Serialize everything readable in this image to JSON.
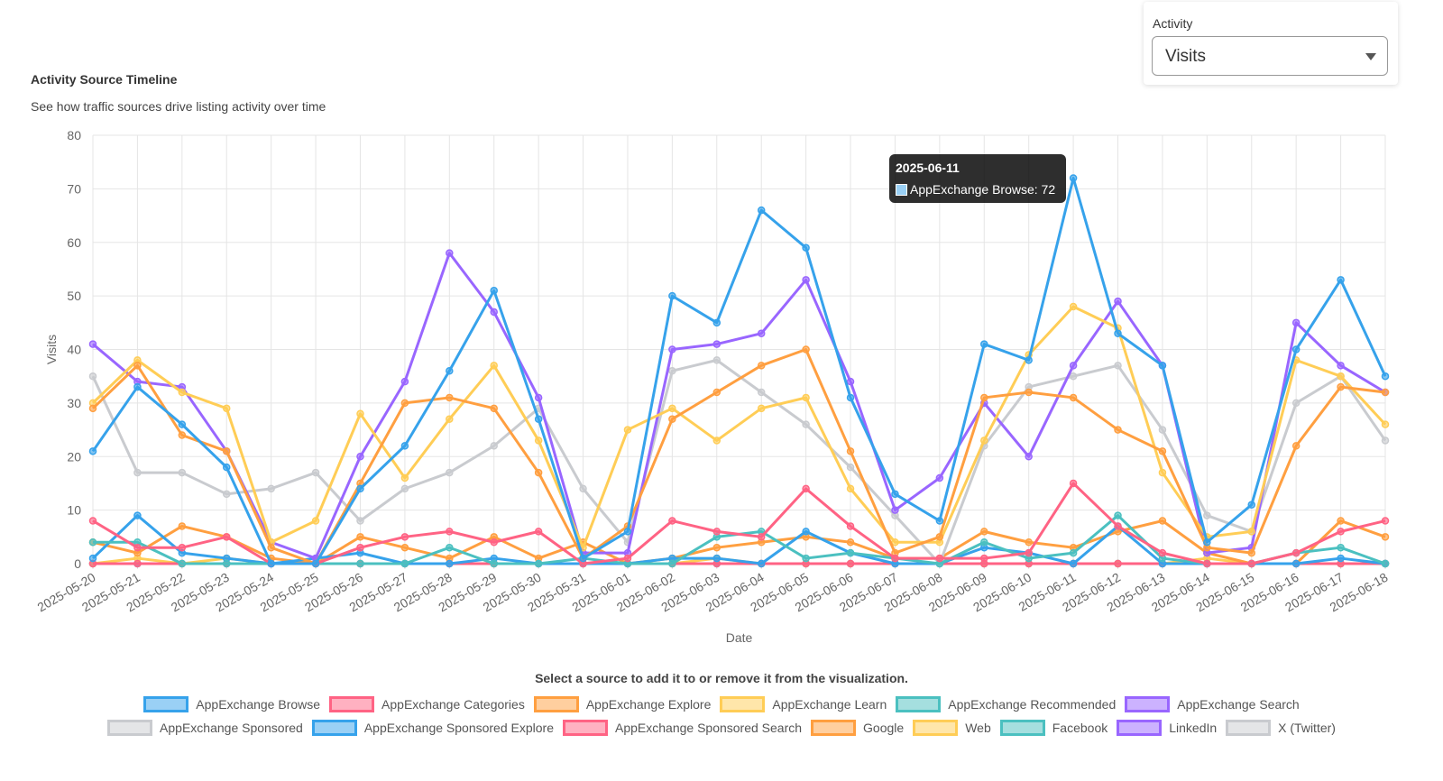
{
  "header": {
    "title": "Activity Source Timeline",
    "subtitle": "See how traffic sources drive listing activity over time"
  },
  "activity_filter": {
    "label": "Activity",
    "value": "Visits"
  },
  "legend_hint": "Select a source to add it to or remove it from the visualization.",
  "tooltip": {
    "date": "2025-06-11",
    "label": "AppExchange Browse: 72"
  },
  "chart_data": {
    "type": "line",
    "title": "Activity Source Timeline",
    "xlabel": "Date",
    "ylabel": "Visits",
    "ylim": [
      0,
      80
    ],
    "yticks": [
      0,
      10,
      20,
      30,
      40,
      50,
      60,
      70,
      80
    ],
    "grid": true,
    "legend_placement": "bottom",
    "x": [
      "2025-05-20",
      "2025-05-21",
      "2025-05-22",
      "2025-05-23",
      "2025-05-24",
      "2025-05-25",
      "2025-05-26",
      "2025-05-27",
      "2025-05-28",
      "2025-05-29",
      "2025-05-30",
      "2025-05-31",
      "2025-06-01",
      "2025-06-02",
      "2025-06-03",
      "2025-06-04",
      "2025-06-05",
      "2025-06-06",
      "2025-06-07",
      "2025-06-08",
      "2025-06-09",
      "2025-06-10",
      "2025-06-11",
      "2025-06-12",
      "2025-06-13",
      "2025-06-14",
      "2025-06-15",
      "2025-06-16",
      "2025-06-17",
      "2025-06-18"
    ],
    "series": [
      {
        "name": "AppExchange Browse",
        "color": "#36a2eb",
        "values": [
          21,
          33,
          26,
          18,
          0,
          0,
          14,
          22,
          36,
          51,
          27,
          1,
          6,
          50,
          45,
          66,
          59,
          31,
          13,
          8,
          41,
          38,
          72,
          43,
          37,
          4,
          11,
          40,
          53,
          35
        ]
      },
      {
        "name": "AppExchange Categories",
        "color": "#ff6384",
        "values": [
          8,
          3,
          3,
          5,
          0,
          0,
          3,
          5,
          6,
          4,
          6,
          0,
          1,
          8,
          6,
          5,
          14,
          7,
          1,
          1,
          1,
          2,
          15,
          7,
          2,
          0,
          0,
          2,
          6,
          8
        ]
      },
      {
        "name": "AppExchange Explore",
        "color": "#ff9f40",
        "values": [
          29,
          37,
          24,
          21,
          3,
          0,
          15,
          30,
          31,
          29,
          17,
          1,
          7,
          27,
          32,
          37,
          40,
          21,
          2,
          5,
          31,
          32,
          31,
          25,
          21,
          3,
          2,
          22,
          33,
          32
        ]
      },
      {
        "name": "AppExchange Learn",
        "color": "#ffcd56",
        "values": [
          30,
          38,
          32,
          29,
          4,
          8,
          28,
          16,
          27,
          37,
          23,
          3,
          25,
          29,
          23,
          29,
          31,
          14,
          4,
          4,
          23,
          39,
          48,
          44,
          17,
          5,
          6,
          38,
          35,
          26
        ]
      },
      {
        "name": "AppExchange Recommended",
        "color": "#4bc0c0",
        "values": [
          4,
          4,
          0,
          0,
          0,
          0,
          0,
          0,
          3,
          0,
          0,
          1,
          0,
          0,
          5,
          6,
          1,
          2,
          1,
          0,
          4,
          1,
          2,
          9,
          1,
          0,
          0,
          2,
          3,
          0
        ]
      },
      {
        "name": "AppExchange Search",
        "color": "#9966ff",
        "values": [
          41,
          34,
          33,
          21,
          4,
          1,
          20,
          34,
          58,
          47,
          31,
          2,
          2,
          40,
          41,
          43,
          53,
          34,
          10,
          16,
          30,
          20,
          37,
          49,
          37,
          2,
          3,
          45,
          37,
          32
        ]
      },
      {
        "name": "AppExchange Sponsored",
        "color": "#c9cbcf",
        "values": [
          35,
          17,
          17,
          13,
          14,
          17,
          8,
          14,
          17,
          22,
          29,
          14,
          4,
          36,
          38,
          32,
          26,
          18,
          9,
          0,
          22,
          33,
          35,
          37,
          25,
          9,
          6,
          30,
          35,
          23
        ]
      },
      {
        "name": "AppExchange Sponsored Explore",
        "color": "#36a2eb",
        "values": [
          1,
          9,
          2,
          1,
          0,
          1,
          2,
          0,
          0,
          1,
          0,
          0,
          0,
          1,
          1,
          0,
          6,
          2,
          0,
          0,
          3,
          2,
          0,
          7,
          0,
          0,
          0,
          0,
          1,
          0
        ]
      },
      {
        "name": "AppExchange Sponsored Search",
        "color": "#ff6384",
        "values": [
          0,
          0,
          0,
          0,
          0,
          0,
          0,
          0,
          0,
          0,
          0,
          0,
          0,
          0,
          0,
          0,
          0,
          0,
          0,
          0,
          0,
          0,
          0,
          0,
          0,
          0,
          0,
          0,
          0,
          0
        ]
      },
      {
        "name": "Google",
        "color": "#ff9f40",
        "values": [
          4,
          2,
          7,
          5,
          1,
          0,
          5,
          3,
          1,
          5,
          1,
          4,
          0,
          1,
          3,
          4,
          5,
          4,
          1,
          1,
          6,
          4,
          3,
          6,
          8,
          2,
          0,
          0,
          8,
          5
        ]
      },
      {
        "name": "Web",
        "color": "#ffcd56",
        "values": [
          0,
          1,
          0,
          1,
          0,
          0,
          0,
          0,
          0,
          0,
          0,
          0,
          0,
          0,
          1,
          0,
          0,
          0,
          0,
          0,
          0,
          0,
          0,
          0,
          0,
          1,
          0,
          0,
          0,
          0
        ]
      },
      {
        "name": "Facebook",
        "color": "#4bc0c0",
        "values": [
          0,
          0,
          0,
          0,
          0,
          0,
          0,
          0,
          0,
          0,
          0,
          0,
          0,
          0,
          0,
          0,
          0,
          0,
          0,
          0,
          0,
          0,
          0,
          0,
          0,
          0,
          0,
          0,
          0,
          0
        ]
      },
      {
        "name": "LinkedIn",
        "color": "#9966ff",
        "values": [
          0,
          0,
          0,
          0,
          0,
          0,
          0,
          0,
          0,
          0,
          0,
          0,
          0,
          0,
          0,
          0,
          0,
          0,
          0,
          0,
          0,
          0,
          0,
          0,
          0,
          0,
          0,
          0,
          0,
          0
        ]
      },
      {
        "name": "X (Twitter)",
        "color": "#c9cbcf",
        "values": [
          0,
          0,
          0,
          0,
          0,
          0,
          0,
          0,
          0,
          0,
          0,
          0,
          0,
          0,
          0,
          0,
          0,
          0,
          0,
          0,
          0,
          0,
          0,
          0,
          0,
          0,
          0,
          0,
          0,
          0
        ]
      }
    ]
  }
}
